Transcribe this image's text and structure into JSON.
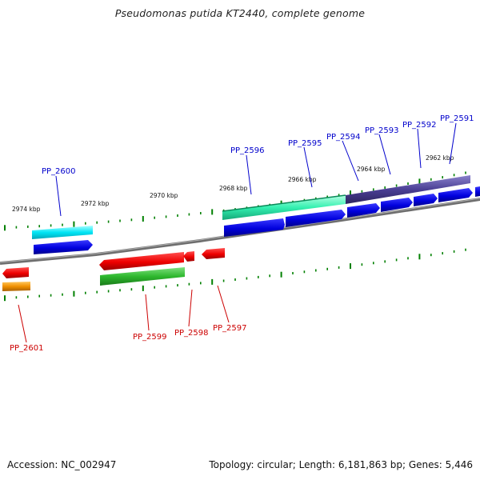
{
  "title": "Pseudomonas putida KT2440, complete genome",
  "footer": {
    "accession": "Accession: NC_002947",
    "info": "Topology: circular; Length: 6,181,863 bp; Genes: 5,446"
  },
  "scale_labels": [
    "2974 kbp",
    "2972 kbp",
    "2970 kbp",
    "2968 kbp",
    "2966 kbp",
    "2964 kbp",
    "2962 kbp"
  ],
  "genes": {
    "forward": [
      "PP_2600",
      "PP_2596",
      "PP_2595",
      "PP_2594",
      "PP_2593",
      "PP_2592",
      "PP_2591"
    ],
    "reverse": [
      "PP_2601",
      "PP_2599",
      "PP_2598",
      "PP_2597"
    ]
  },
  "colors": {
    "forward_label": "#0000cc",
    "reverse_label": "#cc0000",
    "cds_forward": "#0000dd",
    "cds_reverse": "#ee0000",
    "tick": "#008000",
    "backbone": "#777777"
  }
}
